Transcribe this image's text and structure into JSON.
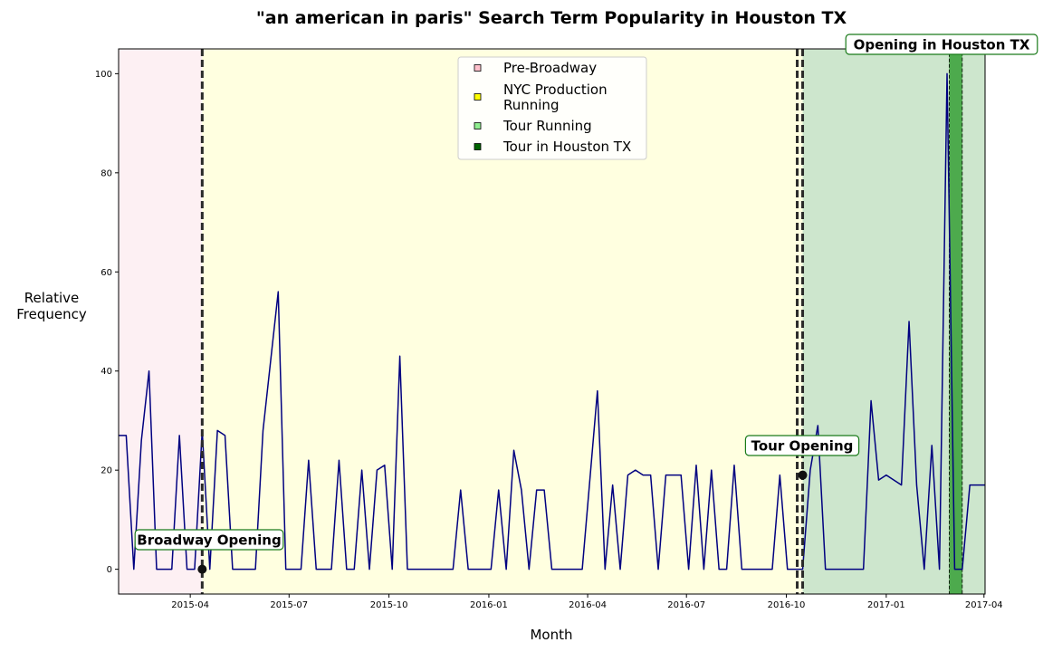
{
  "chart_data": {
    "type": "line",
    "title": "\"an american in paris\" Search Term Popularity in Houston TX",
    "xlabel": "Month",
    "ylabel": "Relative\nFrequency",
    "xlim": [
      "2015-01-25",
      "2017-04-02"
    ],
    "ylim": [
      -5,
      105
    ],
    "x_ticks": [
      {
        "date": "2015-04-01",
        "label": "2015-04"
      },
      {
        "date": "2015-07-01",
        "label": "2015-07"
      },
      {
        "date": "2015-10-01",
        "label": "2015-10"
      },
      {
        "date": "2016-01-01",
        "label": "2016-01"
      },
      {
        "date": "2016-04-01",
        "label": "2016-04"
      },
      {
        "date": "2016-07-01",
        "label": "2016-07"
      },
      {
        "date": "2016-10-01",
        "label": "2016-10"
      },
      {
        "date": "2017-01-01",
        "label": "2017-01"
      },
      {
        "date": "2017-04-01",
        "label": "2017-04"
      }
    ],
    "y_ticks": [
      0,
      20,
      40,
      60,
      80,
      100
    ],
    "grid": false,
    "line_color": "#000080",
    "regions": [
      {
        "name": "Pre-Broadway",
        "start": "2015-01-25",
        "end": "2015-04-12",
        "color": "#fdf0f3",
        "legend_color": "#ffc0cb"
      },
      {
        "name": "NYC Production\nRunning",
        "start": "2015-04-12",
        "end": "2016-10-16",
        "color": "#ffffe0",
        "legend_color": "#ffff00"
      },
      {
        "name": "Tour Running",
        "start": "2016-10-16",
        "end": "2017-04-02",
        "color": "#cde6cd",
        "legend_color": "#90ee90"
      },
      {
        "name": "Tour in Houston TX",
        "start": "2017-02-28",
        "end": "2017-03-12",
        "color": "#4daa4d",
        "legend_color": "#006400"
      }
    ],
    "legend_position": "upper center",
    "vlines": [
      "2015-04-12",
      "2016-10-11",
      "2016-10-16"
    ],
    "annotations": [
      {
        "text": "Broadway Opening",
        "date": "2015-04-12",
        "y": 0
      },
      {
        "text": "Tour Opening",
        "date": "2016-10-16",
        "y": 19
      },
      {
        "text": "Opening in Houston TX",
        "date": "2017-03-05",
        "y": 105
      }
    ],
    "series": [
      {
        "x": [
          "2015-01-25",
          "2015-02-01",
          "2015-02-08",
          "2015-02-15",
          "2015-02-22",
          "2015-03-01",
          "2015-03-08",
          "2015-03-15",
          "2015-03-22",
          "2015-03-29",
          "2015-04-05",
          "2015-04-12",
          "2015-04-19",
          "2015-04-26",
          "2015-05-03",
          "2015-05-10",
          "2015-05-17",
          "2015-05-24",
          "2015-05-31",
          "2015-06-07",
          "2015-06-14",
          "2015-06-21",
          "2015-06-28",
          "2015-07-05",
          "2015-07-12",
          "2015-07-19",
          "2015-07-26",
          "2015-08-02",
          "2015-08-09",
          "2015-08-16",
          "2015-08-23",
          "2015-08-30",
          "2015-09-06",
          "2015-09-13",
          "2015-09-20",
          "2015-09-27",
          "2015-10-04",
          "2015-10-11",
          "2015-10-18",
          "2015-10-25",
          "2015-11-01",
          "2015-11-08",
          "2015-11-15",
          "2015-11-22",
          "2015-11-29",
          "2015-12-06",
          "2015-12-13",
          "2015-12-20",
          "2015-12-27",
          "2016-01-03",
          "2016-01-10",
          "2016-01-17",
          "2016-01-24",
          "2016-01-31",
          "2016-02-07",
          "2016-02-14",
          "2016-02-21",
          "2016-02-28",
          "2016-03-06",
          "2016-03-13",
          "2016-03-20",
          "2016-03-27",
          "2016-04-03",
          "2016-04-10",
          "2016-04-17",
          "2016-04-24",
          "2016-05-01",
          "2016-05-08",
          "2016-05-15",
          "2016-05-22",
          "2016-05-29",
          "2016-06-05",
          "2016-06-12",
          "2016-06-19",
          "2016-06-26",
          "2016-07-03",
          "2016-07-10",
          "2016-07-17",
          "2016-07-24",
          "2016-07-31",
          "2016-08-07",
          "2016-08-14",
          "2016-08-21",
          "2016-08-28",
          "2016-09-04",
          "2016-09-11",
          "2016-09-18",
          "2016-09-25",
          "2016-10-02",
          "2016-10-09",
          "2016-10-16",
          "2016-10-23",
          "2016-10-30",
          "2016-11-06",
          "2016-11-13",
          "2016-11-20",
          "2016-11-27",
          "2016-12-04",
          "2016-12-11",
          "2016-12-18",
          "2016-12-25",
          "2017-01-01",
          "2017-01-08",
          "2017-01-15",
          "2017-01-22",
          "2017-01-29",
          "2017-02-05",
          "2017-02-12",
          "2017-02-19",
          "2017-02-26",
          "2017-03-05",
          "2017-03-12",
          "2017-03-19",
          "2017-03-26",
          "2017-04-02"
        ],
        "values": [
          27,
          27,
          0,
          26,
          40,
          0,
          0,
          0,
          27,
          0,
          0,
          28,
          0,
          28,
          27,
          0,
          0,
          0,
          0,
          28,
          42,
          56,
          0,
          0,
          0,
          22,
          0,
          0,
          0,
          22,
          0,
          0,
          20,
          0,
          20,
          21,
          0,
          43,
          0,
          0,
          0,
          0,
          0,
          0,
          0,
          16,
          0,
          0,
          0,
          0,
          16,
          0,
          24,
          16,
          0,
          16,
          16,
          0,
          0,
          0,
          0,
          0,
          18,
          36,
          0,
          17,
          0,
          19,
          20,
          19,
          19,
          0,
          19,
          19,
          19,
          0,
          21,
          0,
          20,
          0,
          0,
          21,
          0,
          0,
          0,
          0,
          0,
          19,
          0,
          0,
          0,
          20,
          29,
          0,
          0,
          0,
          0,
          0,
          0,
          34,
          18,
          19,
          18,
          17,
          50,
          17,
          0,
          25,
          0,
          100,
          0,
          0,
          17,
          17,
          17
        ]
      }
    ]
  }
}
